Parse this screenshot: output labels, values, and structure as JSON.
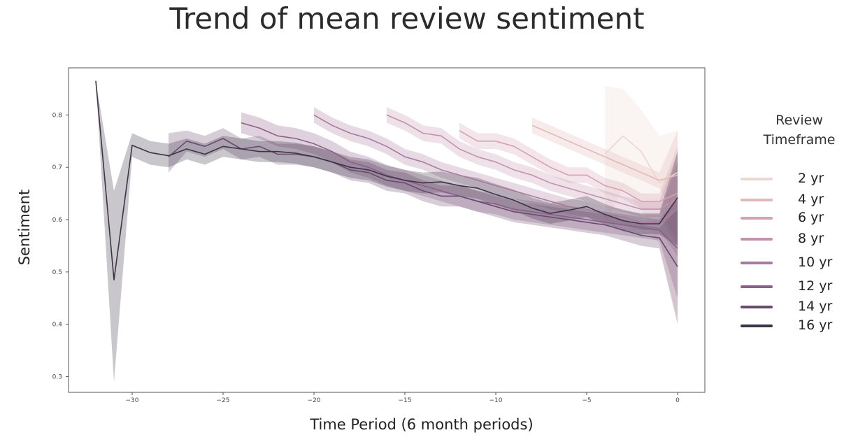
{
  "chart_data": {
    "type": "line",
    "title": "Trend of mean review sentiment",
    "xlabel": "Time Period (6 month periods)",
    "ylabel": "Sentiment",
    "xlim": [
      -33.5,
      1.5
    ],
    "ylim": [
      0.27,
      0.89
    ],
    "xticks": [
      -30,
      -25,
      -20,
      -15,
      -10,
      -5,
      0
    ],
    "xtick_labels": [
      "−30",
      "−25",
      "−20",
      "−15",
      "−10",
      "−5",
      "0"
    ],
    "yticks": [
      0.3,
      0.4,
      0.5,
      0.6,
      0.7,
      0.8
    ],
    "ytick_labels": [
      "0.3",
      "0.4",
      "0.5",
      "0.6",
      "0.7",
      "0.8"
    ],
    "grid": false,
    "legend_title": "Review Timeframe",
    "legend_position": "right",
    "series": [
      {
        "name": "2 yr",
        "color": "#eed6d2",
        "x": [
          -4,
          -3,
          -2,
          -1,
          0
        ],
        "y": [
          0.725,
          0.76,
          0.73,
          0.67,
          0.69
        ],
        "lower": [
          0.59,
          0.66,
          0.62,
          0.55,
          0.41
        ],
        "upper": [
          0.855,
          0.85,
          0.81,
          0.76,
          0.77
        ]
      },
      {
        "name": "4 yr",
        "color": "#e2b8b8",
        "x": [
          -8,
          -7,
          -6,
          -5,
          -4,
          -3,
          -2,
          -1,
          0
        ],
        "y": [
          0.78,
          0.765,
          0.75,
          0.735,
          0.72,
          0.705,
          0.69,
          0.675,
          0.685
        ],
        "lower": [
          0.765,
          0.75,
          0.735,
          0.72,
          0.705,
          0.69,
          0.675,
          0.66,
          0.6
        ],
        "upper": [
          0.795,
          0.78,
          0.765,
          0.75,
          0.735,
          0.72,
          0.705,
          0.69,
          0.77
        ]
      },
      {
        "name": "6 yr",
        "color": "#d4a3b3",
        "x": [
          -12,
          -11,
          -10,
          -9,
          -8,
          -7,
          -6,
          -5,
          -4,
          -3,
          -2,
          -1,
          0
        ],
        "y": [
          0.77,
          0.75,
          0.75,
          0.74,
          0.72,
          0.7,
          0.685,
          0.685,
          0.665,
          0.655,
          0.635,
          0.635,
          0.65
        ],
        "lower": [
          0.755,
          0.735,
          0.735,
          0.725,
          0.705,
          0.685,
          0.67,
          0.67,
          0.65,
          0.64,
          0.62,
          0.62,
          0.56
        ],
        "upper": [
          0.785,
          0.765,
          0.765,
          0.755,
          0.735,
          0.715,
          0.7,
          0.7,
          0.68,
          0.67,
          0.65,
          0.65,
          0.74
        ]
      },
      {
        "name": "8 yr",
        "color": "#c292ac",
        "x": [
          -16,
          -15,
          -14,
          -13,
          -12,
          -11,
          -10,
          -9,
          -8,
          -7,
          -6,
          -5,
          -4,
          -3,
          -2,
          -1,
          0
        ],
        "y": [
          0.8,
          0.785,
          0.765,
          0.76,
          0.735,
          0.72,
          0.71,
          0.695,
          0.685,
          0.67,
          0.66,
          0.65,
          0.64,
          0.63,
          0.62,
          0.62,
          0.64
        ],
        "lower": [
          0.785,
          0.77,
          0.75,
          0.745,
          0.72,
          0.705,
          0.695,
          0.68,
          0.67,
          0.655,
          0.645,
          0.635,
          0.625,
          0.615,
          0.605,
          0.605,
          0.55
        ],
        "upper": [
          0.815,
          0.8,
          0.78,
          0.775,
          0.75,
          0.735,
          0.725,
          0.71,
          0.7,
          0.685,
          0.675,
          0.665,
          0.655,
          0.645,
          0.635,
          0.635,
          0.73
        ]
      },
      {
        "name": "10 yr",
        "color": "#a97a9f",
        "x": [
          -20,
          -19,
          -18,
          -17,
          -16,
          -15,
          -14,
          -13,
          -12,
          -11,
          -10,
          -9,
          -8,
          -7,
          -6,
          -5,
          -4,
          -3,
          -2,
          -1,
          0
        ],
        "y": [
          0.8,
          0.78,
          0.765,
          0.755,
          0.74,
          0.72,
          0.71,
          0.695,
          0.685,
          0.675,
          0.665,
          0.655,
          0.645,
          0.635,
          0.625,
          0.62,
          0.61,
          0.605,
          0.595,
          0.595,
          0.62
        ],
        "lower": [
          0.785,
          0.765,
          0.75,
          0.74,
          0.725,
          0.705,
          0.695,
          0.68,
          0.67,
          0.66,
          0.65,
          0.64,
          0.63,
          0.62,
          0.61,
          0.605,
          0.595,
          0.59,
          0.58,
          0.58,
          0.53
        ],
        "upper": [
          0.815,
          0.795,
          0.78,
          0.77,
          0.755,
          0.735,
          0.725,
          0.71,
          0.7,
          0.69,
          0.68,
          0.67,
          0.66,
          0.65,
          0.64,
          0.635,
          0.625,
          0.62,
          0.61,
          0.61,
          0.71
        ]
      },
      {
        "name": "12 yr",
        "color": "#8c5f88",
        "x": [
          -24,
          -23,
          -22,
          -21,
          -20,
          -19,
          -18,
          -17,
          -16,
          -15,
          -14,
          -13,
          -12,
          -11,
          -10,
          -9,
          -8,
          -7,
          -6,
          -5,
          -4,
          -3,
          -2,
          -1,
          0
        ],
        "y": [
          0.785,
          0.775,
          0.76,
          0.755,
          0.745,
          0.73,
          0.71,
          0.7,
          0.685,
          0.675,
          0.665,
          0.655,
          0.645,
          0.635,
          0.63,
          0.62,
          0.615,
          0.61,
          0.605,
          0.6,
          0.595,
          0.59,
          0.585,
          0.58,
          0.545
        ],
        "lower": [
          0.765,
          0.755,
          0.74,
          0.735,
          0.725,
          0.71,
          0.69,
          0.68,
          0.665,
          0.655,
          0.645,
          0.635,
          0.625,
          0.615,
          0.61,
          0.6,
          0.595,
          0.59,
          0.585,
          0.58,
          0.575,
          0.57,
          0.565,
          0.56,
          0.45
        ],
        "upper": [
          0.805,
          0.795,
          0.78,
          0.775,
          0.765,
          0.75,
          0.73,
          0.72,
          0.705,
          0.695,
          0.685,
          0.675,
          0.665,
          0.655,
          0.65,
          0.64,
          0.635,
          0.63,
          0.625,
          0.62,
          0.615,
          0.61,
          0.605,
          0.6,
          0.64
        ]
      },
      {
        "name": "14 yr",
        "color": "#6a4a70",
        "x": [
          -28,
          -27,
          -26,
          -25,
          -24,
          -23,
          -22,
          -21,
          -20,
          -19,
          -18,
          -17,
          -16,
          -15,
          -14,
          -13,
          -12,
          -11,
          -10,
          -9,
          -8,
          -7,
          -6,
          -5,
          -4,
          -3,
          -2,
          -1,
          0
        ],
        "y": [
          0.72,
          0.75,
          0.74,
          0.755,
          0.735,
          0.74,
          0.725,
          0.725,
          0.72,
          0.71,
          0.695,
          0.69,
          0.675,
          0.67,
          0.655,
          0.645,
          0.645,
          0.635,
          0.625,
          0.615,
          0.61,
          0.605,
          0.6,
          0.595,
          0.59,
          0.58,
          0.57,
          0.565,
          0.51
        ],
        "lower": [
          0.69,
          0.73,
          0.72,
          0.735,
          0.715,
          0.72,
          0.705,
          0.705,
          0.7,
          0.69,
          0.675,
          0.67,
          0.655,
          0.65,
          0.635,
          0.625,
          0.625,
          0.615,
          0.605,
          0.595,
          0.59,
          0.585,
          0.58,
          0.575,
          0.57,
          0.56,
          0.55,
          0.545,
          0.4
        ],
        "upper": [
          0.765,
          0.77,
          0.76,
          0.775,
          0.755,
          0.76,
          0.745,
          0.745,
          0.74,
          0.73,
          0.715,
          0.71,
          0.695,
          0.69,
          0.675,
          0.665,
          0.665,
          0.655,
          0.645,
          0.635,
          0.63,
          0.625,
          0.62,
          0.615,
          0.61,
          0.6,
          0.59,
          0.585,
          0.62
        ]
      },
      {
        "name": "16 yr",
        "color": "#3d3448",
        "x": [
          -32,
          -31,
          -30,
          -29,
          -28,
          -27,
          -26,
          -25,
          -24,
          -23,
          -22,
          -21,
          -20,
          -19,
          -18,
          -17,
          -16,
          -15,
          -14,
          -13,
          -12,
          -11,
          -10,
          -9,
          -8,
          -7,
          -6,
          -5,
          -4,
          -3,
          -2,
          -1,
          0
        ],
        "y": [
          0.865,
          0.485,
          0.742,
          0.728,
          0.722,
          0.735,
          0.725,
          0.74,
          0.735,
          0.73,
          0.73,
          0.727,
          0.72,
          0.71,
          0.7,
          0.695,
          0.683,
          0.675,
          0.67,
          0.672,
          0.665,
          0.66,
          0.648,
          0.637,
          0.622,
          0.612,
          0.618,
          0.625,
          0.61,
          0.598,
          0.592,
          0.592,
          0.642
        ],
        "lower": [
          0.865,
          0.29,
          0.72,
          0.705,
          0.7,
          0.715,
          0.705,
          0.72,
          0.715,
          0.71,
          0.71,
          0.707,
          0.7,
          0.69,
          0.68,
          0.675,
          0.663,
          0.655,
          0.65,
          0.652,
          0.645,
          0.64,
          0.628,
          0.617,
          0.602,
          0.592,
          0.598,
          0.605,
          0.59,
          0.578,
          0.572,
          0.572,
          0.55
        ],
        "upper": [
          0.865,
          0.655,
          0.765,
          0.75,
          0.745,
          0.755,
          0.745,
          0.76,
          0.755,
          0.75,
          0.75,
          0.747,
          0.74,
          0.73,
          0.72,
          0.715,
          0.703,
          0.695,
          0.69,
          0.692,
          0.685,
          0.68,
          0.668,
          0.657,
          0.642,
          0.632,
          0.638,
          0.645,
          0.63,
          0.618,
          0.612,
          0.612,
          0.73
        ]
      }
    ]
  }
}
